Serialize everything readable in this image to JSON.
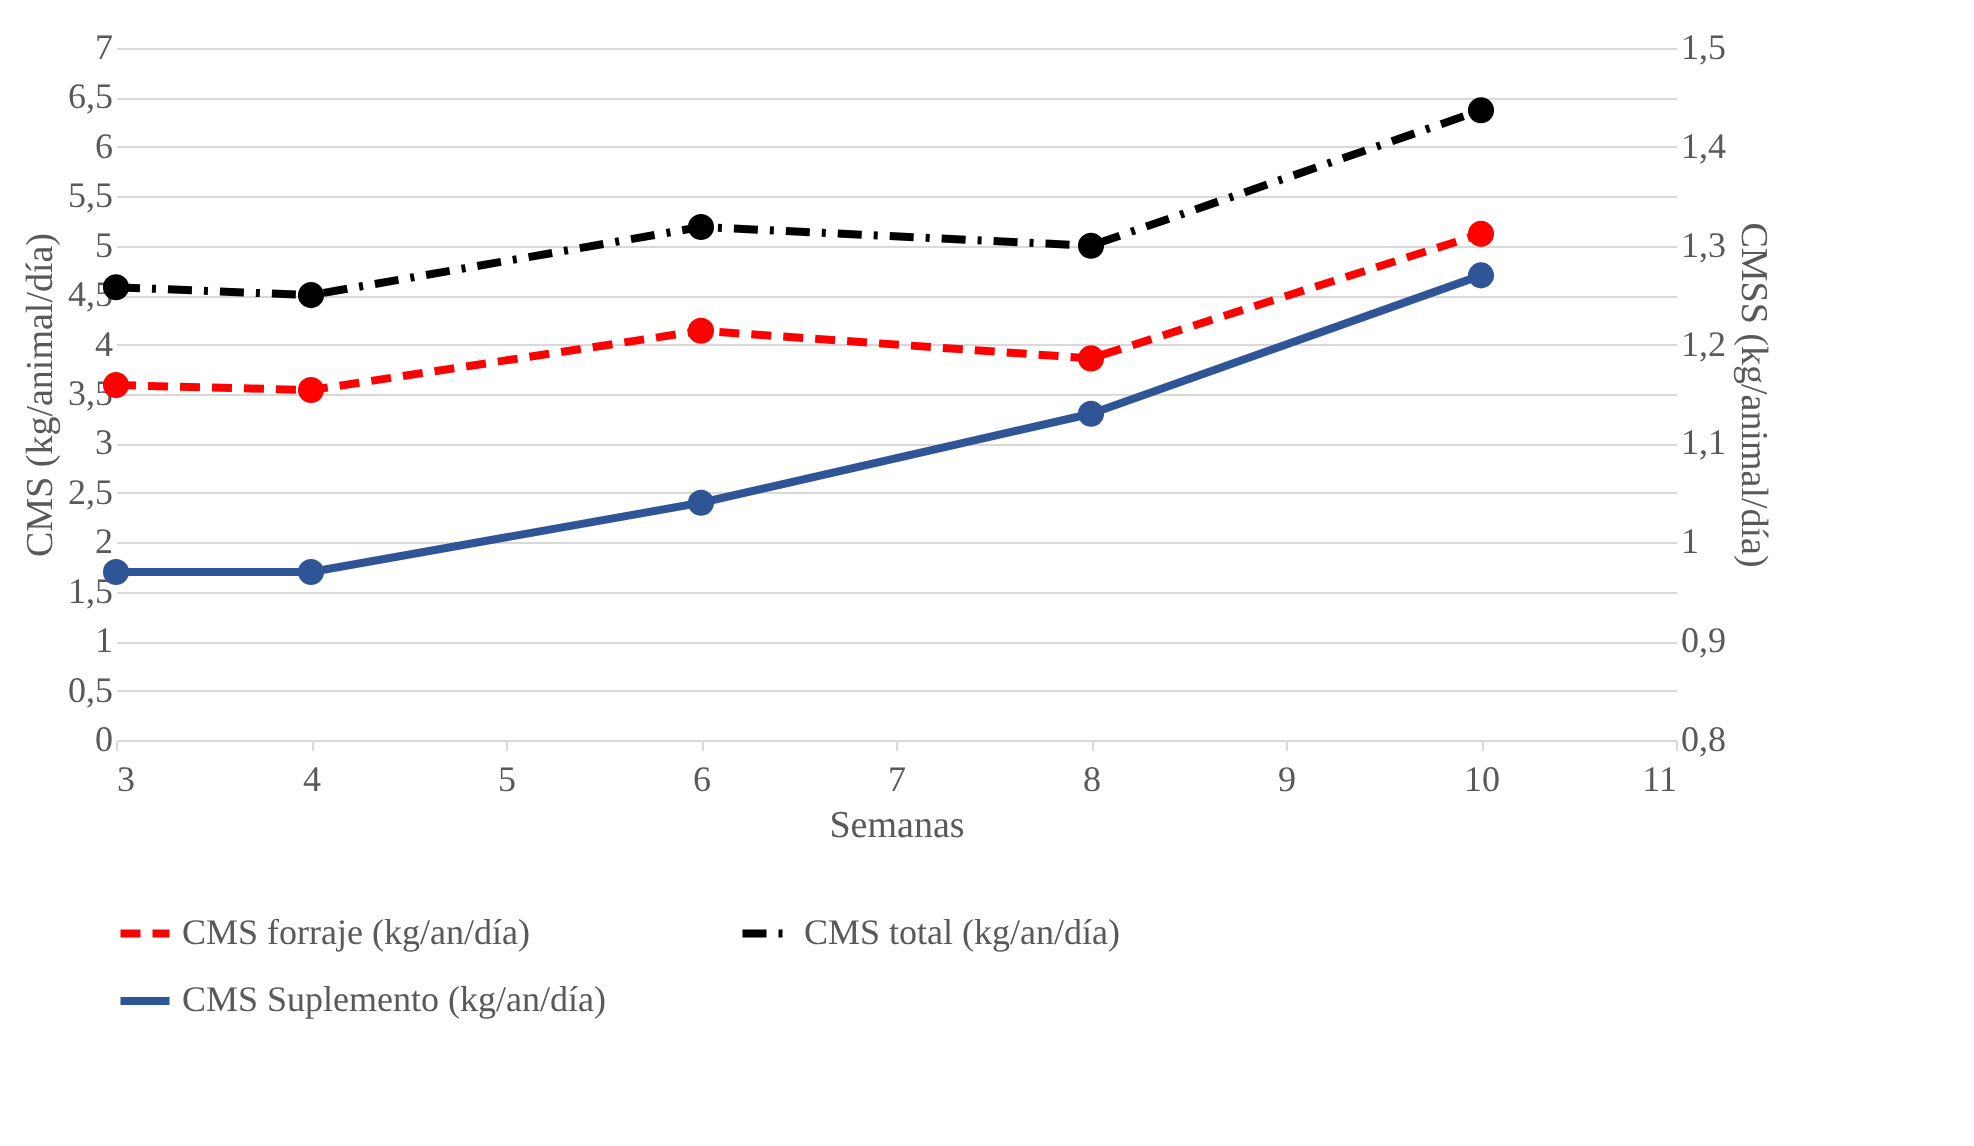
{
  "chart_data": {
    "type": "line",
    "xlabel": "Semanas",
    "ylabel": "CMS (kg/animal/día)",
    "y2label": "CMSS (kg/animal/día)",
    "x": [
      3,
      4,
      6,
      8,
      10
    ],
    "series": [
      {
        "name": "CMS forraje (kg/an/día)",
        "color": "#ff0000",
        "line_style": "dashed",
        "values": [
          3.59,
          3.54,
          4.14,
          3.86,
          5.12
        ]
      },
      {
        "name": "CMS total (kg/an/día)",
        "color": "#000000",
        "line_style": "dashdot",
        "values": [
          4.58,
          4.5,
          5.19,
          5.0,
          6.37
        ]
      },
      {
        "name": "CMS Suplemento (kg/an/día)",
        "color": "#2f5597",
        "line_style": "solid",
        "axis": "y2",
        "values": [
          0.97,
          0.97,
          1.04,
          1.13,
          1.27
        ]
      }
    ],
    "xlim": [
      3,
      11
    ],
    "xticks": [
      3,
      4,
      5,
      6,
      7,
      8,
      9,
      10,
      11
    ],
    "ylim": [
      0,
      7
    ],
    "yticks": [
      0,
      {
        "value": 0.5,
        "label": "0,5"
      },
      1,
      {
        "value": 1.5,
        "label": "1,5"
      },
      2,
      {
        "value": 2.5,
        "label": "2,5"
      },
      3,
      {
        "value": 3.5,
        "label": "3,5"
      },
      4,
      {
        "value": 4.5,
        "label": "4,5"
      },
      5,
      {
        "value": 5.5,
        "label": "5,5"
      },
      6,
      {
        "value": 6.5,
        "label": "6,5"
      },
      7
    ],
    "y2lim": [
      0.8,
      1.5
    ],
    "y2ticks": [
      {
        "value": 0.8,
        "label": "0,8"
      },
      {
        "value": 0.9,
        "label": "0,9"
      },
      1,
      {
        "value": 1.1,
        "label": "1,1"
      },
      {
        "value": 1.2,
        "label": "1,2"
      },
      {
        "value": 1.3,
        "label": "1,3"
      },
      {
        "value": 1.4,
        "label": "1,4"
      },
      {
        "value": 1.5,
        "label": "1,5"
      }
    ],
    "grid": "y",
    "legend": "bottom",
    "marker": "circle"
  }
}
